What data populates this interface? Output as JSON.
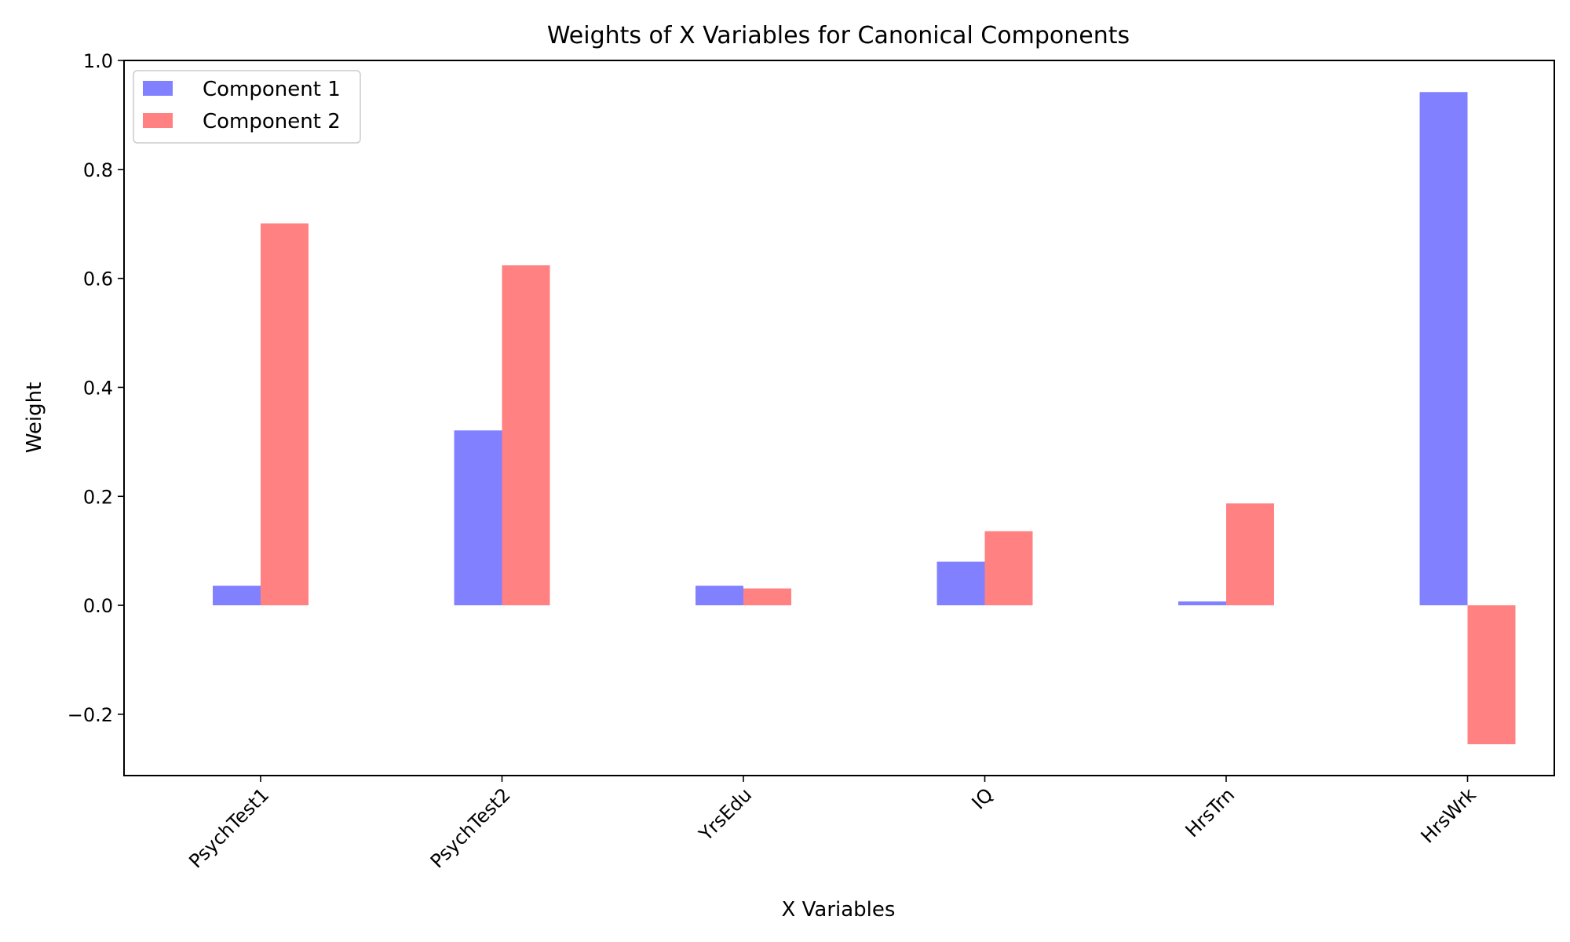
{
  "chart_data": {
    "type": "bar",
    "title": "Weights of X Variables for Canonical Components",
    "xlabel": "X Variables",
    "ylabel": "Weight",
    "categories": [
      "PsychTest1",
      "PsychTest2",
      "YrsEdu",
      "IQ",
      "HrsTrn",
      "HrsWrk"
    ],
    "series": [
      {
        "name": "Component 1",
        "color": "#4b4bff",
        "values": [
          0.036,
          0.321,
          0.036,
          0.08,
          0.007,
          0.942
        ]
      },
      {
        "name": "Component 2",
        "color": "#ff4b4b",
        "values": [
          0.701,
          0.624,
          0.031,
          0.136,
          0.187,
          -0.255
        ]
      }
    ],
    "ylim": [
      -0.3125,
      1.0
    ],
    "yticks": [
      -0.2,
      0.0,
      0.2,
      0.4,
      0.6,
      0.8,
      1.0
    ],
    "ytick_labels": [
      "−0.2",
      "0.0",
      "0.2",
      "0.4",
      "0.6",
      "0.8",
      "1.0"
    ],
    "legend_position": "top-left",
    "grid": false
  }
}
